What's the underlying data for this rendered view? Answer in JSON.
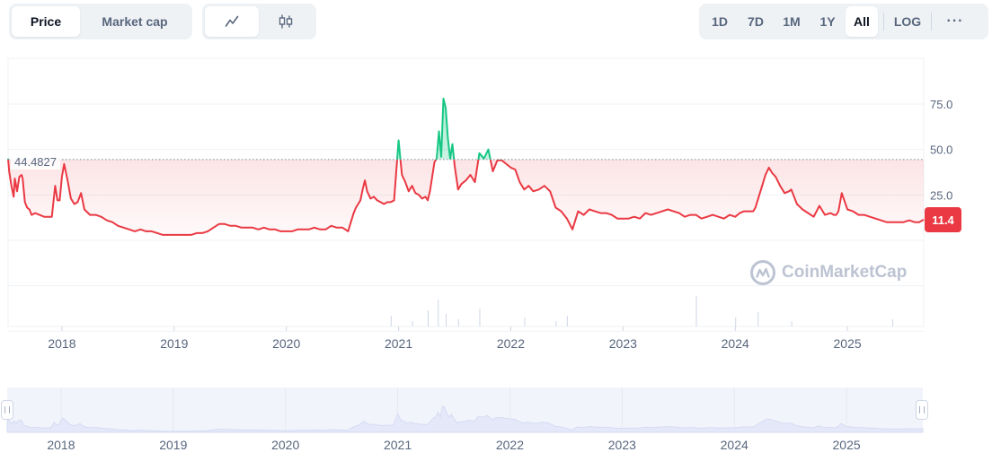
{
  "toolbar": {
    "type_tabs": [
      {
        "label": "Price",
        "active": true
      },
      {
        "label": "Market cap",
        "active": false
      }
    ],
    "chart_type_icons": [
      {
        "icon": "line-chart-icon",
        "active": true
      },
      {
        "icon": "candlestick-icon",
        "active": false
      }
    ],
    "ranges": [
      {
        "label": "1D",
        "active": false
      },
      {
        "label": "7D",
        "active": false
      },
      {
        "label": "1M",
        "active": false
      },
      {
        "label": "1Y",
        "active": false
      },
      {
        "label": "All",
        "active": true
      }
    ],
    "log_label": "LOG",
    "more_label": "···"
  },
  "watermark": "CoinMarketCap",
  "colors": {
    "up": "#16c784",
    "down": "#ea3943",
    "grid": "#eff2f5",
    "axis_text": "#58667e",
    "volume": "#cfd6e4",
    "navigator_fill": "#e4e8f9"
  },
  "chart_data": {
    "type": "line",
    "x_unit": "year",
    "xlim": [
      2017.52,
      2025.68
    ],
    "ylim": [
      -15,
      90
    ],
    "y_ticks": [
      25.0,
      50.0,
      75.0
    ],
    "y_tick_labels": [
      "25.0",
      "50.0",
      "75.0"
    ],
    "x_ticks": [
      2018,
      2019,
      2020,
      2021,
      2022,
      2023,
      2024,
      2025
    ],
    "x_tick_labels": [
      "2018",
      "2019",
      "2020",
      "2021",
      "2022",
      "2023",
      "2024",
      "2025"
    ],
    "reference_price": 44.4827,
    "reference_label": "44.4827",
    "current_price_label": "11.4",
    "grid": true,
    "legend": "none",
    "series": [
      {
        "x": [
          2017.52,
          2017.53,
          2017.55,
          2017.57,
          2017.58,
          2017.6,
          2017.62,
          2017.64,
          2017.65,
          2017.67,
          2017.69,
          2017.71,
          2017.73,
          2017.76,
          2017.8,
          2017.84,
          2017.88,
          2017.91,
          2017.94,
          2017.96,
          2017.98,
          2018.0,
          2018.02,
          2018.05,
          2018.08,
          2018.11,
          2018.14,
          2018.17,
          2018.2,
          2018.25,
          2018.3,
          2018.35,
          2018.4,
          2018.45,
          2018.5,
          2018.55,
          2018.6,
          2018.65,
          2018.7,
          2018.75,
          2018.8,
          2018.85,
          2018.9,
          2018.95,
          2019.0,
          2019.05,
          2019.1,
          2019.15,
          2019.2,
          2019.25,
          2019.3,
          2019.35,
          2019.4,
          2019.45,
          2019.5,
          2019.55,
          2019.6,
          2019.65,
          2019.7,
          2019.75,
          2019.8,
          2019.85,
          2019.9,
          2019.95,
          2020.0,
          2020.05,
          2020.1,
          2020.15,
          2020.2,
          2020.25,
          2020.3,
          2020.35,
          2020.4,
          2020.45,
          2020.5,
          2020.55,
          2020.58,
          2020.6,
          2020.62,
          2020.64,
          2020.66,
          2020.68,
          2020.7,
          2020.72,
          2020.75,
          2020.78,
          2020.81,
          2020.84,
          2020.87,
          2020.9,
          2020.93,
          2020.96,
          2021.0,
          2021.03,
          2021.06,
          2021.09,
          2021.12,
          2021.15,
          2021.18,
          2021.21,
          2021.24,
          2021.26,
          2021.28,
          2021.3,
          2021.32,
          2021.34,
          2021.36,
          2021.38,
          2021.4,
          2021.42,
          2021.44,
          2021.46,
          2021.48,
          2021.5,
          2021.53,
          2021.56,
          2021.6,
          2021.64,
          2021.68,
          2021.72,
          2021.76,
          2021.8,
          2021.84,
          2021.88,
          2021.92,
          2021.96,
          2022.0,
          2022.04,
          2022.08,
          2022.12,
          2022.16,
          2022.2,
          2022.25,
          2022.3,
          2022.35,
          2022.4,
          2022.45,
          2022.5,
          2022.55,
          2022.6,
          2022.65,
          2022.7,
          2022.75,
          2022.8,
          2022.85,
          2022.9,
          2022.95,
          2023.0,
          2023.05,
          2023.1,
          2023.15,
          2023.2,
          2023.25,
          2023.3,
          2023.35,
          2023.4,
          2023.45,
          2023.5,
          2023.55,
          2023.6,
          2023.65,
          2023.7,
          2023.75,
          2023.8,
          2023.85,
          2023.9,
          2023.95,
          2024.0,
          2024.04,
          2024.08,
          2024.12,
          2024.16,
          2024.18,
          2024.2,
          2024.22,
          2024.24,
          2024.27,
          2024.3,
          2024.33,
          2024.36,
          2024.4,
          2024.44,
          2024.48,
          2024.5,
          2024.55,
          2024.6,
          2024.65,
          2024.7,
          2024.75,
          2024.8,
          2024.85,
          2024.88,
          2024.9,
          2024.92,
          2024.95,
          2025.0,
          2025.05,
          2025.1,
          2025.15,
          2025.2,
          2025.25,
          2025.3,
          2025.35,
          2025.4,
          2025.45,
          2025.5,
          2025.55,
          2025.6,
          2025.64,
          2025.68
        ],
        "y": [
          45,
          38,
          30,
          24,
          34,
          27,
          35,
          36,
          34,
          21,
          18,
          17,
          14,
          15,
          14,
          13,
          13,
          13,
          30,
          22,
          22,
          35,
          42,
          33,
          23,
          20,
          21,
          26,
          17,
          14,
          14,
          13,
          11,
          10,
          8,
          7,
          6,
          5,
          6,
          5,
          5,
          4,
          3,
          3,
          3,
          3,
          3,
          3,
          4,
          4,
          5,
          7,
          9,
          9,
          8,
          8,
          7,
          7,
          7,
          6,
          7,
          6,
          6,
          5,
          5,
          5,
          6,
          6,
          6,
          7,
          6,
          6,
          8,
          7,
          7,
          5,
          11,
          15,
          18,
          20,
          22,
          28,
          33,
          27,
          23,
          24,
          22,
          21,
          20,
          21,
          21,
          22,
          55,
          36,
          32,
          27,
          30,
          26,
          25,
          23,
          24,
          22,
          27,
          35,
          43,
          45,
          60,
          46,
          78,
          73,
          56,
          45,
          53,
          41,
          28,
          31,
          33,
          36,
          32,
          48,
          45,
          50,
          38,
          44,
          44,
          42,
          40,
          39,
          32,
          28,
          30,
          27,
          28,
          30,
          27,
          18,
          16,
          12,
          6,
          16,
          14,
          17,
          16,
          15,
          15,
          14,
          12,
          12,
          12,
          13,
          12,
          15,
          14,
          15,
          16,
          17,
          16,
          15,
          13,
          14,
          14,
          12,
          13,
          14,
          13,
          12,
          14,
          13,
          15,
          16,
          16,
          16,
          18,
          22,
          26,
          30,
          36,
          40,
          37,
          35,
          30,
          26,
          27,
          28,
          20,
          17,
          15,
          13,
          19,
          14,
          15,
          14,
          14,
          16,
          26,
          17,
          16,
          14,
          14,
          13,
          12,
          11,
          10,
          10,
          10,
          10,
          11,
          10,
          10,
          11.4
        ]
      }
    ]
  }
}
